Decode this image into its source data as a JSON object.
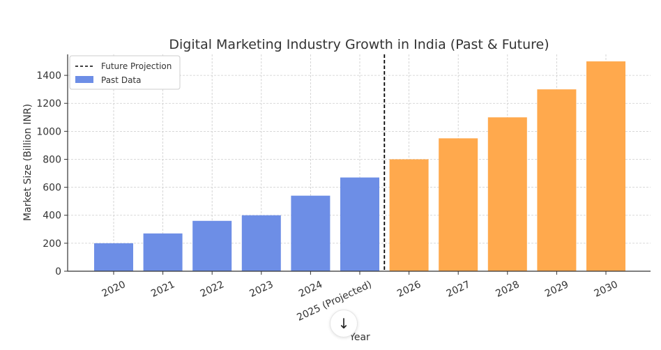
{
  "chart_data": {
    "type": "bar",
    "title": "Digital Marketing Industry Growth in India (Past & Future)",
    "xlabel": "Year",
    "ylabel": "Market Size (Billion INR)",
    "ylim": [
      0,
      1550
    ],
    "yticks": [
      0,
      200,
      400,
      600,
      800,
      1000,
      1200,
      1400
    ],
    "grid": true,
    "legend_position": "top-left",
    "categories": [
      "2020",
      "2021",
      "2022",
      "2023",
      "2024",
      "2025 (Projected)",
      "2026",
      "2027",
      "2028",
      "2029",
      "2030"
    ],
    "series": [
      {
        "name": "Past Data",
        "color": "#6d8ee6",
        "values": [
          200,
          270,
          360,
          400,
          540,
          670,
          null,
          null,
          null,
          null,
          null
        ]
      },
      {
        "name": "",
        "color": "#ffa94d",
        "values": [
          null,
          null,
          null,
          null,
          null,
          null,
          800,
          950,
          1100,
          1300,
          1500
        ]
      }
    ],
    "projection_line": {
      "label": "Future Projection",
      "after_category": "2025 (Projected)",
      "style": "dashed",
      "color": "#000000"
    }
  },
  "overlay": {
    "scroll_icon": "arrow-down-icon",
    "scroll_glyph": "↓"
  }
}
